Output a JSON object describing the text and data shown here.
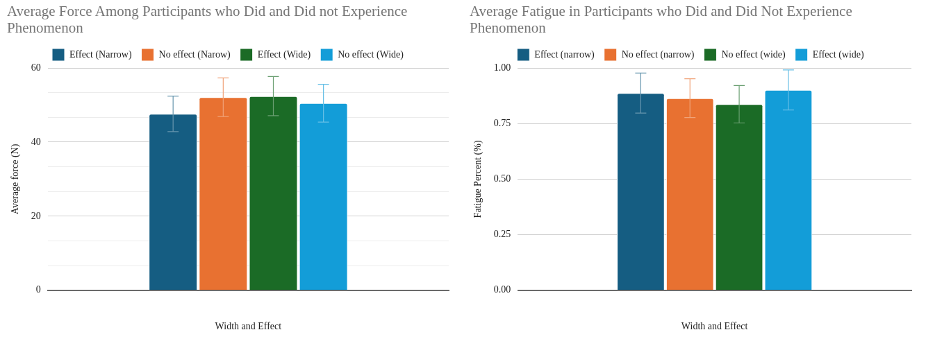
{
  "chart_data": [
    {
      "type": "bar",
      "title": "Average Force Among Participants who Did and Did not Experience Phenomenon",
      "xlabel": "Width and Effect",
      "ylabel": "Average force (N)",
      "categories": [
        null
      ],
      "series": [
        {
          "name": "Effect (Narrow)",
          "color": "#155d82",
          "values": [
            47.6
          ],
          "errors": [
            4.8
          ]
        },
        {
          "name": "No effect (Narow)",
          "color": "#e87131",
          "values": [
            52.1
          ],
          "errors": [
            5.2
          ]
        },
        {
          "name": "Effect (Wide)",
          "color": "#1b6b26",
          "values": [
            52.4
          ],
          "errors": [
            5.3
          ]
        },
        {
          "name": "No effect (Wide)",
          "color": "#139dd8",
          "values": [
            50.5
          ],
          "errors": [
            5.1
          ]
        }
      ],
      "ylim": [
        0,
        60
      ],
      "yticks": [
        0,
        {
          "value": 6.667,
          "label": null
        },
        {
          "value": 13.333,
          "label": null
        },
        20,
        {
          "value": 26.667,
          "label": null
        },
        {
          "value": 33.333,
          "label": null
        },
        40,
        {
          "value": 46.667,
          "label": null
        },
        {
          "value": 53.333,
          "label": null
        },
        60
      ],
      "grid": "y",
      "legend": "top"
    },
    {
      "type": "bar",
      "title": "Average Fatigue in Participants who Did and Did Not Experience Phenomenon",
      "xlabel": "Width and Effect",
      "ylabel": "Fatigue Percent (%)",
      "categories": [
        null
      ],
      "series": [
        {
          "name": "Effect (narrow)",
          "color": "#155d82",
          "values": [
            0.887
          ],
          "errors": [
            0.09
          ]
        },
        {
          "name": "No effect (narrow)",
          "color": "#e87131",
          "values": [
            0.864
          ],
          "errors": [
            0.087
          ]
        },
        {
          "name": "No effect (wide)",
          "color": "#1b6b26",
          "values": [
            0.837
          ],
          "errors": [
            0.084
          ]
        },
        {
          "name": "Effect (wide)",
          "color": "#139dd8",
          "values": [
            0.901
          ],
          "errors": [
            0.09
          ]
        }
      ],
      "ylim": [
        0,
        1
      ],
      "yticks": [
        {
          "value": 0,
          "label": "0.00"
        },
        {
          "value": 0.25,
          "label": "0.25"
        },
        {
          "value": 0.5,
          "label": "0.50"
        },
        {
          "value": 0.75,
          "label": "0.75"
        },
        {
          "value": 1,
          "label": "1.00"
        }
      ],
      "grid": "y",
      "legend": "top"
    }
  ]
}
